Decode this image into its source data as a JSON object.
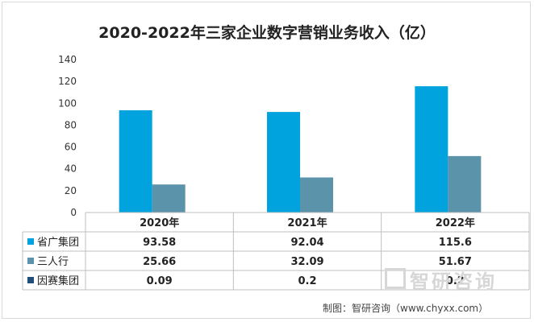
{
  "chart_data": {
    "type": "bar",
    "title": "2020-2022年三家企业数字营销业务收入（亿）",
    "categories": [
      "2020年",
      "2021年",
      "2022年"
    ],
    "ylim": [
      0,
      140
    ],
    "yticks": [
      0,
      20,
      40,
      60,
      80,
      100,
      120,
      140
    ],
    "series": [
      {
        "name": "省广集团",
        "values": [
          93.58,
          92.04,
          115.6
        ],
        "labels": [
          "93.58",
          "92.04",
          "115.6"
        ],
        "color": "#00a3de"
      },
      {
        "name": "三人行",
        "values": [
          25.66,
          32.09,
          51.67
        ],
        "labels": [
          "25.66",
          "32.09",
          "51.67"
        ],
        "color": "#5b93ab"
      },
      {
        "name": "因赛集团",
        "values": [
          0.09,
          0.2,
          0.2
        ],
        "labels": [
          "0.09",
          "0.2",
          "0.2"
        ],
        "color": "#1f4e79"
      }
    ],
    "data_table": true
  },
  "footer": "制图：智研咨询（www.chyxx.com）",
  "watermark": "智研咨询"
}
